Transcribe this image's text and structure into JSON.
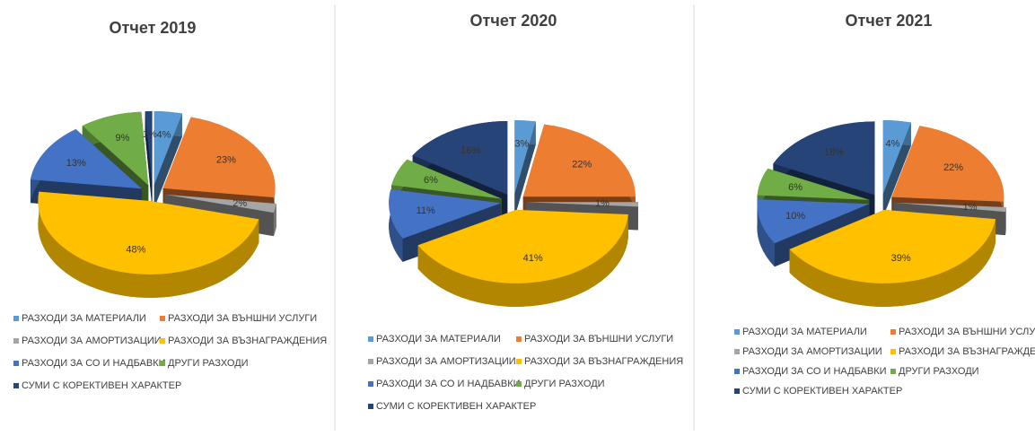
{
  "chart_data": [
    {
      "type": "pie",
      "title": "Отчет 2019",
      "categories": [
        "РАЗХОДИ ЗА МАТЕРИАЛИ",
        "РАЗХОДИ ЗА ВЪНШНИ УСЛУГИ",
        "РАЗХОДИ ЗА АМОРТИЗАЦИИ",
        "РАЗХОДИ ЗА ВЪЗНАГРАЖДЕНИЯ",
        "РАЗХОДИ ЗА СО И НАДБАВКИ",
        "ДРУГИ РАЗХОДИ",
        "СУМИ С КОРЕКТИВЕН ХАРАКТЕР"
      ],
      "values": [
        4,
        23,
        2,
        48,
        13,
        9,
        1
      ],
      "value_labels": [
        "4%",
        "23%",
        "2%",
        "48%",
        "13%",
        "9%",
        "1%"
      ],
      "colors": [
        "#5b9bd5",
        "#ed7d31",
        "#a5a5a5",
        "#ffc000",
        "#4472c4",
        "#70ad47",
        "#264478"
      ]
    },
    {
      "type": "pie",
      "title": "Отчет 2020",
      "categories": [
        "РАЗХОДИ ЗА МАТЕРИАЛИ",
        "РАЗХОДИ ЗА ВЪНШНИ УСЛУГИ",
        "РАЗХОДИ ЗА АМОРТИЗАЦИИ",
        "РАЗХОДИ ЗА ВЪЗНАГРАЖДЕНИЯ",
        "РАЗХОДИ ЗА СО И НАДБАВКИ",
        "ДРУГИ РАЗХОДИ",
        "СУМИ С КОРЕКТИВЕН ХАРАКТЕР"
      ],
      "values": [
        3,
        22,
        1,
        41,
        11,
        6,
        16
      ],
      "value_labels": [
        "3%",
        "22%",
        "1%",
        "41%",
        "11%",
        "6%",
        "16%"
      ],
      "colors": [
        "#5b9bd5",
        "#ed7d31",
        "#a5a5a5",
        "#ffc000",
        "#4472c4",
        "#70ad47",
        "#264478"
      ]
    },
    {
      "type": "pie",
      "title": "Отчет 2021",
      "categories": [
        "РАЗХОДИ ЗА МАТЕРИАЛИ",
        "РАЗХОДИ ЗА ВЪНШНИ УСЛУГИ",
        "РАЗХОДИ ЗА АМОРТИЗАЦИИ",
        "РАЗХОДИ ЗА ВЪЗНАГРАЖДЕНИЯ",
        "РАЗХОДИ ЗА СО И НАДБАВКИ",
        "ДРУГИ РАЗХОДИ",
        "СУМИ С КОРЕКТИВЕН ХАРАКТЕР"
      ],
      "values": [
        4,
        22,
        1,
        39,
        10,
        6,
        18
      ],
      "value_labels": [
        "4%",
        "22%",
        "1%",
        "39%",
        "10%",
        "6%",
        "18%"
      ],
      "colors": [
        "#5b9bd5",
        "#ed7d31",
        "#a5a5a5",
        "#ffc000",
        "#4472c4",
        "#70ad47",
        "#264478"
      ]
    }
  ]
}
